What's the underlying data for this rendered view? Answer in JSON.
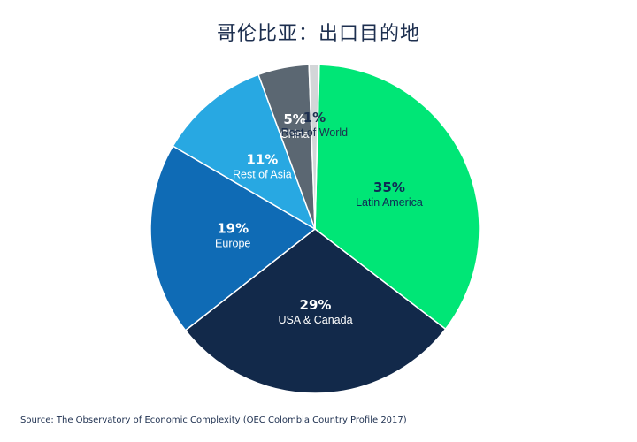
{
  "chart_data": {
    "type": "pie",
    "title": "哥伦比亚：出口目的地",
    "source": "Source: The Observatory of Economic Complexity (OEC Colombia Country Profile 2017)",
    "slices": [
      {
        "label": "Latin America",
        "value": 35,
        "value_label": "35%",
        "color": "#00e676",
        "text_color": "#0f2a55"
      },
      {
        "label": "USA & Canada",
        "value": 29,
        "value_label": "29%",
        "color": "#12294a",
        "text_color": "#ffffff"
      },
      {
        "label": "Europe",
        "value": 19,
        "value_label": "19%",
        "color": "#0f6bb5",
        "text_color": "#ffffff"
      },
      {
        "label": "Rest of Asia",
        "value": 11,
        "value_label": "11%",
        "color": "#28a8e2",
        "text_color": "#ffffff"
      },
      {
        "label": "China",
        "value": 5,
        "value_label": "5%",
        "color": "#5b6772",
        "text_color": "#ffffff"
      },
      {
        "label": "Rest of World",
        "value": 1,
        "value_label": "1%",
        "color": "#d3d6d8",
        "text_color": "#1d2f4f"
      }
    ]
  }
}
